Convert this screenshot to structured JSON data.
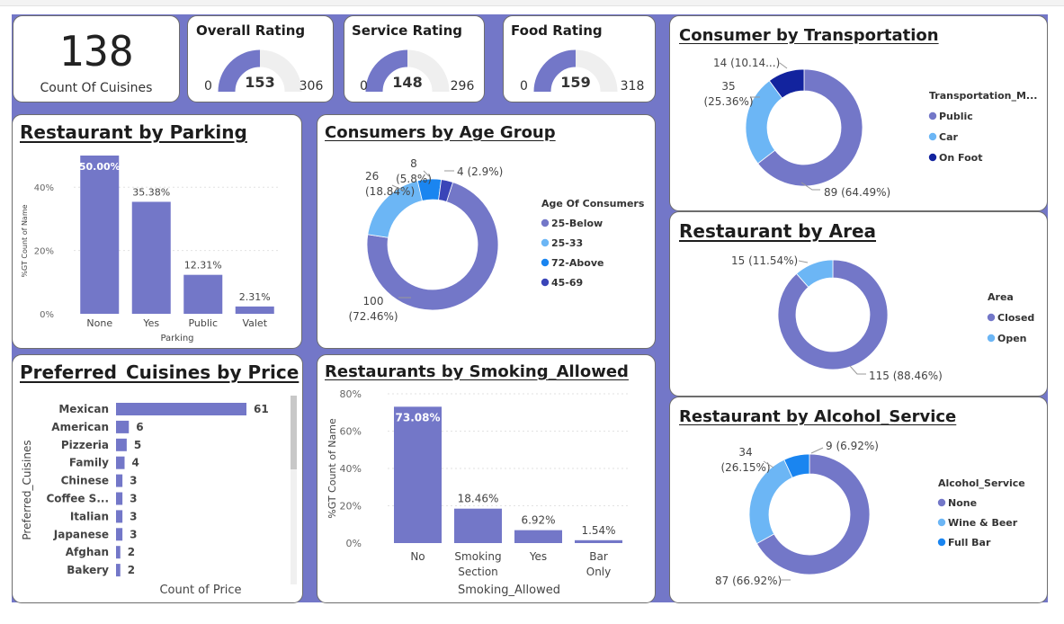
{
  "kpi": {
    "cuisines_count": "138",
    "cuisines_label": "Count Of Cuisines"
  },
  "gauges": [
    {
      "title": "Overall Rating",
      "min": "0",
      "value": "153",
      "max": "306"
    },
    {
      "title": "Service Rating",
      "min": "0",
      "value": "148",
      "max": "296"
    },
    {
      "title": "Food Rating",
      "min": "0",
      "value": "159",
      "max": "318"
    }
  ],
  "parking": {
    "title": "Restaurant by Parking",
    "ylabel": "%GT Count of Name",
    "xlabel": "Parking",
    "yticks": [
      "0%",
      "20%",
      "40%"
    ]
  },
  "age": {
    "title": "Consumers by Age Group",
    "legend_title": "Age Of Consumers"
  },
  "transport": {
    "title": "Consumer by Transportation",
    "legend_title": "Transportation_M..."
  },
  "area": {
    "title": "Restaurant by Area",
    "legend_title": "Area"
  },
  "cuisines": {
    "title": "Preferred_Cuisines by Price",
    "ylabel": "Preferred_Cuisines",
    "xlabel": "Count of Price"
  },
  "smoking": {
    "title": "Restaurants by Smoking_Allowed",
    "ylabel": "%GT Count of Name",
    "xlabel": "Smoking_Allowed",
    "yticks": [
      "0%",
      "20%",
      "40%",
      "60%",
      "80%"
    ]
  },
  "alcohol": {
    "title": "Restaurant by Alcohol_Service",
    "legend_title": "Alcohol_Service"
  },
  "colors": {
    "primary": "#7377c8",
    "light_blue": "#6cb6f5",
    "bright_blue": "#1a85f0",
    "navy": "#12239e",
    "indigo": "#3a45b8",
    "gauge_bg": "#efefef"
  },
  "chart_data": [
    {
      "id": "parking",
      "type": "bar",
      "title": "Restaurant by Parking",
      "xlabel": "Parking",
      "ylabel": "%GT Count of Name",
      "categories": [
        "None",
        "Yes",
        "Public",
        "Valet"
      ],
      "values": [
        50.0,
        35.38,
        12.31,
        2.31
      ],
      "labels": [
        "50.00%",
        "35.38%",
        "12.31%",
        "2.31%"
      ],
      "ylim": [
        0,
        50
      ]
    },
    {
      "id": "age",
      "type": "pie",
      "title": "Consumers by Age Group",
      "categories": [
        "25-Below",
        "25-33",
        "72-Above",
        "45-69"
      ],
      "values": [
        100,
        26,
        8,
        4
      ],
      "labels": [
        "100\n(72.46%)",
        "26\n(18.84%)",
        "8\n(5.8%)",
        "4 (2.9%)"
      ]
    },
    {
      "id": "transport",
      "type": "pie",
      "title": "Consumer by Transportation",
      "categories": [
        "Public",
        "Car",
        "On Foot"
      ],
      "values": [
        89,
        35,
        14
      ],
      "labels": [
        "89 (64.49%)",
        "35\n(25.36%)",
        "14 (10.14...)"
      ]
    },
    {
      "id": "area",
      "type": "pie",
      "title": "Restaurant by Area",
      "categories": [
        "Closed",
        "Open"
      ],
      "values": [
        115,
        15
      ],
      "labels": [
        "115 (88.46%)",
        "15 (11.54%)"
      ]
    },
    {
      "id": "cuisines",
      "type": "bar",
      "title": "Preferred_Cuisines by Price",
      "xlabel": "Count of Price",
      "ylabel": "Preferred_Cuisines",
      "categories": [
        "Mexican",
        "American",
        "Pizzeria",
        "Family",
        "Chinese",
        "Coffee S...",
        "Italian",
        "Japanese",
        "Afghan",
        "Bakery"
      ],
      "values": [
        61,
        6,
        5,
        4,
        3,
        3,
        3,
        3,
        2,
        2
      ],
      "orientation": "horizontal"
    },
    {
      "id": "smoking",
      "type": "bar",
      "title": "Restaurants by Smoking_Allowed",
      "xlabel": "Smoking_Allowed",
      "ylabel": "%GT Count of Name",
      "categories": [
        "No",
        "Smoking Section",
        "Yes",
        "Bar Only"
      ],
      "values": [
        73.08,
        18.46,
        6.92,
        1.54
      ],
      "labels": [
        "73.08%",
        "18.46%",
        "6.92%",
        "1.54%"
      ],
      "ylim": [
        0,
        80
      ]
    },
    {
      "id": "alcohol",
      "type": "pie",
      "title": "Restaurant by Alcohol_Service",
      "categories": [
        "None",
        "Wine & Beer",
        "Full Bar"
      ],
      "values": [
        87,
        34,
        9
      ],
      "labels": [
        "87 (66.92%)",
        "34\n(26.15%)",
        "9 (6.92%)"
      ]
    }
  ]
}
